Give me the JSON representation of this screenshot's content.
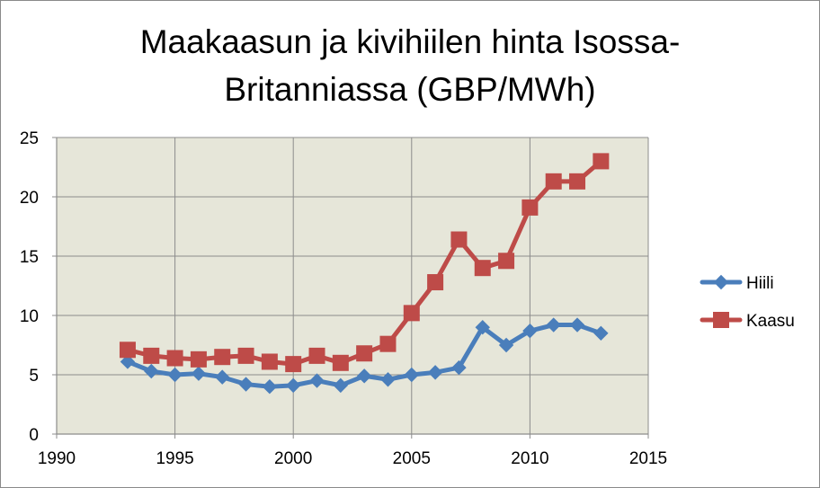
{
  "chart_data": {
    "type": "line",
    "title_lines": [
      "Maakaasun ja kivihiilen hinta Isossa-",
      "Britanniassa (GBP/MWh)"
    ],
    "xlim": [
      1990,
      2015
    ],
    "ylim": [
      0,
      25
    ],
    "x_ticks": [
      1990,
      1995,
      2000,
      2005,
      2010,
      2015
    ],
    "y_ticks": [
      0,
      5,
      10,
      15,
      20,
      25
    ],
    "grid": true,
    "legend_position": "right",
    "x": [
      1993,
      1994,
      1995,
      1996,
      1997,
      1998,
      1999,
      2000,
      2001,
      2002,
      2003,
      2004,
      2005,
      2006,
      2007,
      2008,
      2009,
      2010,
      2011,
      2012,
      2013
    ],
    "series": [
      {
        "name": "Hiili",
        "color": "#4a7ebb",
        "marker": "diamond",
        "values": [
          6.1,
          5.3,
          5.0,
          5.1,
          4.8,
          4.2,
          4.0,
          4.1,
          4.5,
          4.1,
          4.9,
          4.6,
          5.0,
          5.2,
          5.6,
          9.0,
          7.5,
          8.7,
          9.2,
          9.2,
          8.5
        ]
      },
      {
        "name": "Kaasu",
        "color": "#be4b48",
        "marker": "square",
        "values": [
          7.1,
          6.6,
          6.4,
          6.3,
          6.5,
          6.6,
          6.1,
          5.9,
          6.6,
          6.0,
          6.8,
          7.6,
          10.2,
          12.8,
          16.4,
          14.0,
          14.6,
          19.1,
          21.3,
          21.3,
          23.0
        ]
      }
    ],
    "colors": {
      "plot_background": "#e6e6d9",
      "gridline": "#8c8c8c",
      "frame_border": "#8a8a8a"
    }
  }
}
